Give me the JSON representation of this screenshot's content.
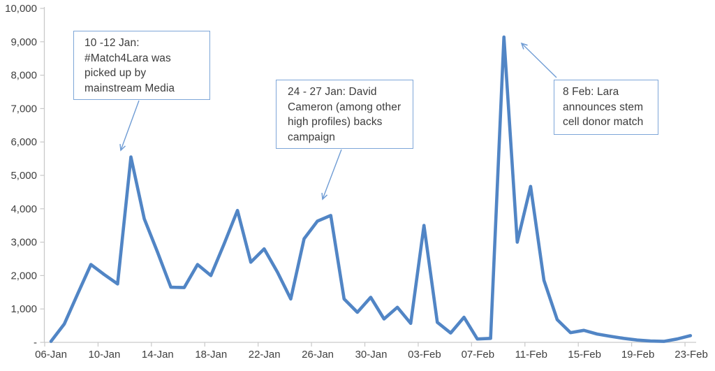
{
  "chart_data": {
    "type": "line",
    "title": "",
    "xlabel": "",
    "ylabel": "",
    "ylim": [
      0,
      10000
    ],
    "grid": false,
    "legend_position": "none",
    "x": [
      "06-Jan",
      "07-Jan",
      "08-Jan",
      "09-Jan",
      "10-Jan",
      "11-Jan",
      "12-Jan",
      "13-Jan",
      "14-Jan",
      "15-Jan",
      "16-Jan",
      "17-Jan",
      "18-Jan",
      "19-Jan",
      "20-Jan",
      "21-Jan",
      "22-Jan",
      "23-Jan",
      "24-Jan",
      "25-Jan",
      "26-Jan",
      "27-Jan",
      "28-Jan",
      "29-Jan",
      "30-Jan",
      "31-Jan",
      "01-Feb",
      "02-Feb",
      "03-Feb",
      "04-Feb",
      "05-Feb",
      "06-Feb",
      "07-Feb",
      "08-Feb",
      "09-Feb",
      "10-Feb",
      "11-Feb",
      "12-Feb",
      "13-Feb",
      "14-Feb",
      "15-Feb",
      "16-Feb",
      "17-Feb",
      "18-Feb",
      "19-Feb",
      "20-Feb",
      "21-Feb",
      "22-Feb",
      "23-Feb"
    ],
    "values": [
      30,
      550,
      1450,
      2330,
      2030,
      1750,
      5550,
      3700,
      2700,
      1650,
      1640,
      2330,
      2000,
      2950,
      3950,
      2400,
      2800,
      2100,
      1300,
      3100,
      3630,
      3800,
      1300,
      900,
      1350,
      700,
      1050,
      570,
      3500,
      600,
      280,
      750,
      100,
      120,
      9140,
      3000,
      4670,
      1860,
      680,
      290,
      360,
      250,
      180,
      120,
      70,
      40,
      30,
      100,
      200
    ],
    "y_axis": {
      "ticks": [
        {
          "label": "10,000",
          "value": 10000
        },
        {
          "label": "9,000",
          "value": 9000
        },
        {
          "label": "8,000",
          "value": 8000
        },
        {
          "label": "7,000",
          "value": 7000
        },
        {
          "label": "6,000",
          "value": 6000
        },
        {
          "label": "5,000",
          "value": 5000
        },
        {
          "label": "4,000",
          "value": 4000
        },
        {
          "label": "3,000",
          "value": 3000
        },
        {
          "label": "2,000",
          "value": 2000
        },
        {
          "label": "1,000",
          "value": 1000
        },
        {
          "label": "-",
          "value": 0
        }
      ]
    },
    "x_axis": {
      "tick_labels": [
        "06-Jan",
        "10-Jan",
        "14-Jan",
        "18-Jan",
        "22-Jan",
        "26-Jan",
        "30-Jan",
        "03-Feb",
        "07-Feb",
        "11-Feb",
        "15-Feb",
        "19-Feb",
        "23-Feb"
      ]
    },
    "annotations": [
      {
        "text": "10 -12 Jan: #Match4Lara was picked up by mainstream Media"
      },
      {
        "text": "24 - 27 Jan: David Cameron (among other high profiles) backs campaign"
      },
      {
        "text": "8 Feb: Lara announces stem cell donor match"
      }
    ],
    "colors": {
      "line": "#5185c5",
      "axis": "#c9c9c9",
      "tick_label": "#3f3f3f",
      "callout_border": "#7ea6d8",
      "callout_text": "#3c3c3c",
      "arrow": "#6f9cd4"
    }
  }
}
